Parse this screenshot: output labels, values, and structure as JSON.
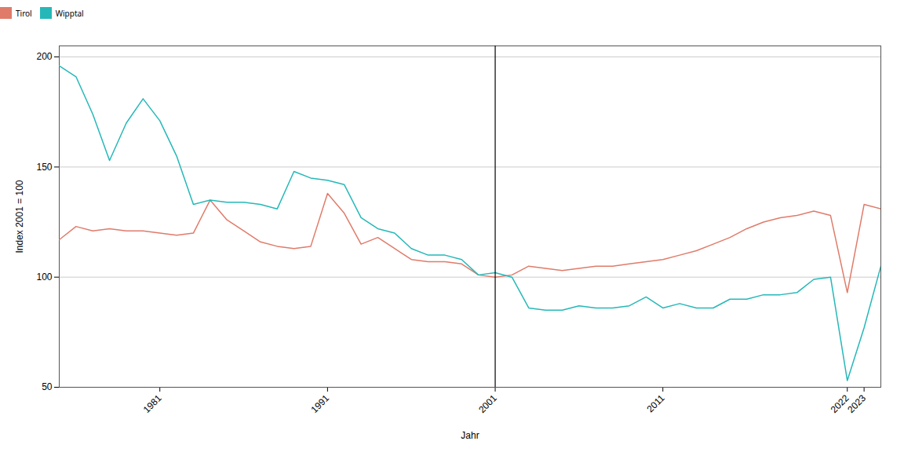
{
  "chart_data": {
    "type": "line",
    "xlabel": "Jahr",
    "ylabel": "Index 2001 = 100",
    "x": [
      1975,
      1976,
      1977,
      1978,
      1979,
      1980,
      1981,
      1982,
      1983,
      1984,
      1985,
      1986,
      1987,
      1988,
      1989,
      1990,
      1991,
      1992,
      1993,
      1994,
      1995,
      1996,
      1997,
      1998,
      1999,
      2000,
      2001,
      2002,
      2003,
      2004,
      2005,
      2006,
      2007,
      2008,
      2009,
      2010,
      2011,
      2012,
      2013,
      2014,
      2015,
      2016,
      2017,
      2018,
      2019,
      2020,
      2021,
      2022,
      2023,
      2024
    ],
    "series": [
      {
        "name": "Tirol",
        "color": "#E07B6A",
        "values": [
          117,
          123,
          121,
          122,
          121,
          121,
          120,
          119,
          120,
          135,
          126,
          121,
          116,
          114,
          113,
          114,
          138,
          129,
          115,
          118,
          113,
          108,
          107,
          107,
          106,
          101,
          100,
          101,
          105,
          104,
          103,
          104,
          105,
          105,
          106,
          107,
          108,
          110,
          112,
          115,
          118,
          122,
          125,
          127,
          128,
          130,
          128,
          93,
          133,
          131
        ]
      },
      {
        "name": "Wipptal",
        "color": "#26B8B8",
        "values": [
          196,
          191,
          174,
          153,
          170,
          181,
          171,
          155,
          133,
          135,
          134,
          134,
          133,
          131,
          148,
          145,
          144,
          142,
          127,
          122,
          120,
          113,
          110,
          110,
          108,
          101,
          102,
          100,
          86,
          85,
          85,
          87,
          86,
          86,
          87,
          91,
          86,
          88,
          86,
          86,
          90,
          90,
          92,
          92,
          93,
          99,
          100,
          53,
          77,
          105
        ]
      }
    ],
    "xlim": [
      1975,
      2024
    ],
    "ylim": [
      50,
      205
    ],
    "xticks": [
      1981,
      1991,
      2001,
      2011,
      2022,
      2023
    ],
    "yticks": [
      50,
      100,
      150,
      200
    ],
    "vline": 2001,
    "grid": true
  }
}
